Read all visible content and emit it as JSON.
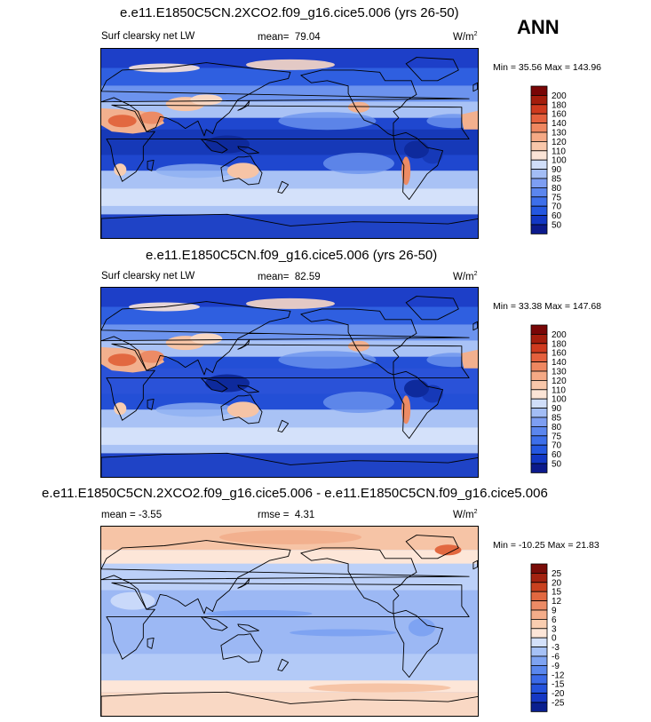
{
  "season": "ANN",
  "chart_data": [
    {
      "type": "heatmap",
      "title": "e.e11.E1850C5CN.2XCO2.f09_g16.cice5.006 (yrs 26-50)",
      "variable": "Surf clearsky net LW",
      "mean_label": "mean=",
      "mean": "79.04",
      "units_text": "W/m",
      "units_exp": "2",
      "min_label": "Min =",
      "min": "35.56",
      "max_label": "Max =",
      "max": "143.96",
      "levels": [
        "50",
        "60",
        "70",
        "75",
        "80",
        "85",
        "90",
        "100",
        "110",
        "120",
        "130",
        "140",
        "160",
        "180",
        "200"
      ],
      "colors": [
        "#0c1a8c",
        "#1237c4",
        "#2457e0",
        "#3d6fea",
        "#5b86ee",
        "#7d9ef2",
        "#a3bdf5",
        "#d0def9",
        "#fbe4d6",
        "#f9c7aa",
        "#f5a985",
        "#ef8760",
        "#e5603d",
        "#cf3a1e",
        "#a41d0c",
        "#790606"
      ]
    },
    {
      "type": "heatmap",
      "title": "e.e11.E1850C5CN.f09_g16.cice5.006 (yrs 26-50)",
      "variable": "Surf clearsky net LW",
      "mean_label": "mean=",
      "mean": "82.59",
      "units_text": "W/m",
      "units_exp": "2",
      "min_label": "Min =",
      "min": "33.38",
      "max_label": "Max =",
      "max": "147.68",
      "levels": [
        "50",
        "60",
        "70",
        "75",
        "80",
        "85",
        "90",
        "100",
        "110",
        "120",
        "130",
        "140",
        "160",
        "180",
        "200"
      ],
      "colors": [
        "#0c1a8c",
        "#1237c4",
        "#2457e0",
        "#3d6fea",
        "#5b86ee",
        "#7d9ef2",
        "#a3bdf5",
        "#d0def9",
        "#fbe4d6",
        "#f9c7aa",
        "#f5a985",
        "#ef8760",
        "#e5603d",
        "#cf3a1e",
        "#a41d0c",
        "#790606"
      ]
    },
    {
      "type": "heatmap",
      "title": "e.e11.E1850C5CN.2XCO2.f09_g16.cice5.006 - e.e11.E1850C5CN.f09_g16.cice5.006",
      "mean_label": "mean =",
      "mean": "-3.55",
      "rmse_label": "rmse =",
      "rmse": "4.31",
      "units_text": "W/m",
      "units_exp": "2",
      "min_label": "Min =",
      "min": "-10.25",
      "max_label": "Max =",
      "max": "21.83",
      "levels": [
        "-25",
        "-20",
        "-15",
        "-12",
        "-9",
        "-6",
        "-3",
        "0",
        "3",
        "6",
        "9",
        "12",
        "15",
        "20",
        "25"
      ],
      "colors": [
        "#0a1f8f",
        "#1638c4",
        "#2452dc",
        "#3b6ae8",
        "#5a87ee",
        "#7ea3f2",
        "#a6c1f6",
        "#d4e1fa",
        "#fde6d8",
        "#f9cdb0",
        "#f4ad8a",
        "#ec8b65",
        "#e26840",
        "#c9411f",
        "#a32210",
        "#7a0c08"
      ]
    }
  ]
}
